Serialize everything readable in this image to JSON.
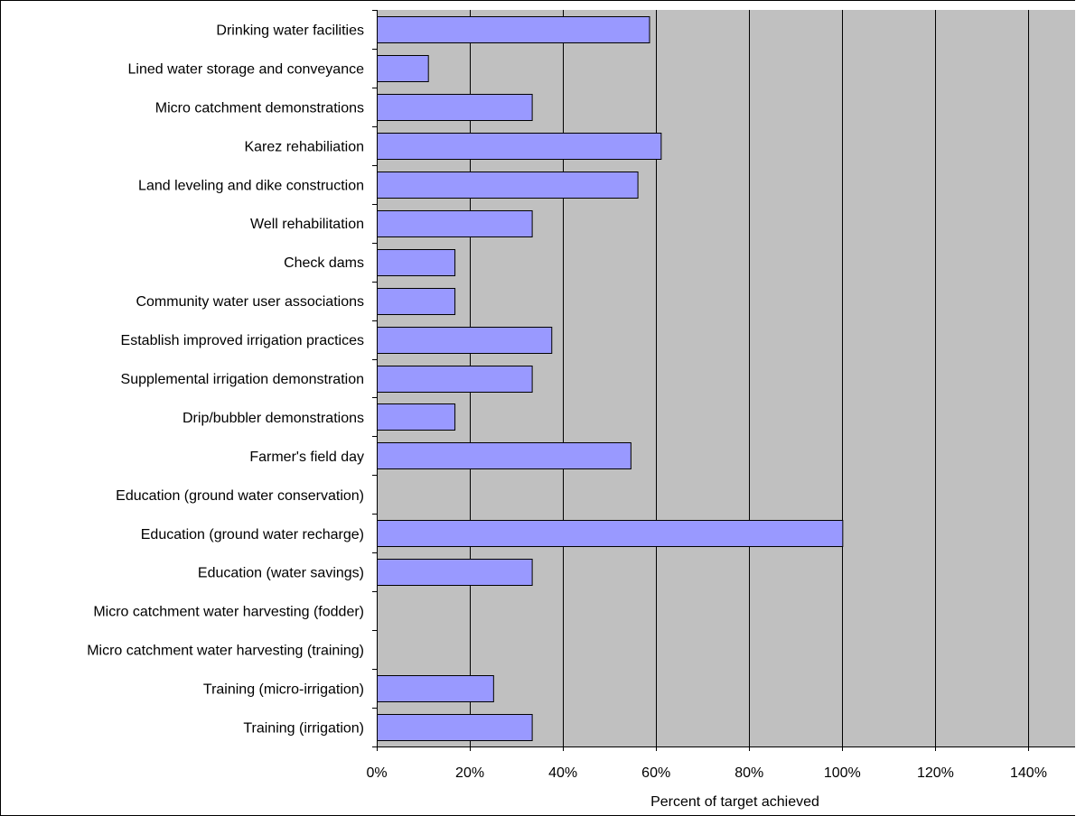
{
  "chart_data": {
    "type": "bar",
    "orientation": "horizontal",
    "categories": [
      "Drinking water facilities",
      "Lined water storage and conveyance",
      "Micro catchment demonstrations",
      "Karez rehabiliation",
      "Land leveling and dike construction",
      "Well rehabilitation",
      "Check dams",
      "Community water user associations",
      "Establish improved irrigation practices",
      "Supplemental irrigation demonstration",
      "Drip/bubbler demonstrations",
      "Farmer's field day",
      "Education (ground water conservation)",
      "Education (ground water recharge)",
      "Education (water savings)",
      "Micro catchment water harvesting (fodder)",
      "Micro catchment water harvesting (training)",
      "Training (micro-irrigation)",
      "Training (irrigation)"
    ],
    "values": [
      58.5,
      11,
      33.3,
      61,
      56,
      33.3,
      16.7,
      16.7,
      37.5,
      33.3,
      16.7,
      54.5,
      0,
      100,
      33.3,
      0,
      0,
      25,
      33.3
    ],
    "xlim": [
      0,
      150
    ],
    "x_ticks": [
      0,
      20,
      40,
      60,
      80,
      100,
      120,
      140
    ],
    "x_tick_labels": [
      "0%",
      "20%",
      "40%",
      "60%",
      "80%",
      "100%",
      "120%",
      "140%"
    ],
    "xlabel": "Percent of target achieved",
    "grid": "vertical",
    "colors": {
      "bar_fill": "#9999ff",
      "bar_stroke": "#000000",
      "plot_background": "#c0c0c0",
      "gridline": "#000000"
    }
  }
}
